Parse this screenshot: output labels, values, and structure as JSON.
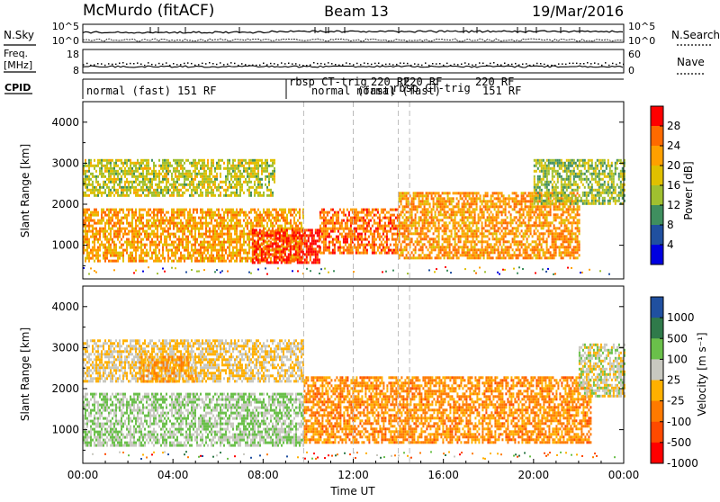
{
  "header": {
    "station": "McMurdo (fitACF)",
    "beam": "Beam 13",
    "date": "19/Mar/2016"
  },
  "noise_panel": {
    "left_label": "N.Sky",
    "right_label": "N.Search",
    "left_ticks": [
      "10^5",
      "10^0"
    ],
    "right_ticks": [
      "10^5",
      "10^0"
    ]
  },
  "freq_panel": {
    "left_label_1": "Freq.",
    "left_label_2": "[MHz]",
    "right_label": "Nave",
    "left_ticks": [
      "18",
      "8"
    ],
    "right_ticks": [
      "60",
      "0"
    ]
  },
  "cpid_panel": {
    "label": "CPID",
    "programs": [
      {
        "label": "normal (fast) 151 RF"
      },
      {
        "label": "rbsp CT-trig"
      },
      {
        "label": "normal (fast)"
      },
      {
        "label": "220 RF"
      },
      {
        "label": "220 RF"
      },
      {
        "label": "rbsp CT-trig"
      },
      {
        "label": "normal (fast)"
      },
      {
        "label": "220 RF"
      },
      {
        "label": "151 RF"
      }
    ]
  },
  "x_axis": {
    "title": "Time UT",
    "tick_labels": [
      "00:00",
      "04:00",
      "08:00",
      "12:00",
      "16:00",
      "20:00",
      "00:00"
    ]
  },
  "power_panel": {
    "ylabel": "Slant Range [km]",
    "y_ticks": [
      "4000",
      "3000",
      "2000",
      "1000"
    ],
    "colorbar_label": "Power [dB]",
    "colorbar_ticks": [
      "28",
      "24",
      "20",
      "16",
      "12",
      "8",
      "4"
    ]
  },
  "velocity_panel": {
    "ylabel": "Slant Range [km]",
    "y_ticks": [
      "4000",
      "3000",
      "2000",
      "1000"
    ],
    "colorbar_label": "Velocity [m s⁻¹]",
    "colorbar_ticks": [
      "1000",
      "500",
      "100",
      "25",
      "-25",
      "-100",
      "-500",
      "-1000"
    ]
  },
  "colors": {
    "power_scale": [
      "#ff0000",
      "#ff6a00",
      "#ffa000",
      "#e0c000",
      "#a0c030",
      "#3f8f5f",
      "#2050a0",
      "#0000e0"
    ],
    "velocity_scale": [
      "#2050a0",
      "#2f7a4a",
      "#6ac04a",
      "#c8c8c0",
      "#ffb000",
      "#ff7a00",
      "#ff4a00",
      "#ff0000"
    ]
  },
  "chart_data": [
    {
      "type": "heatmap",
      "title": "Power",
      "xlabel": "Time UT",
      "ylabel": "Slant Range [km]",
      "x_unit": "hours UT",
      "xlim": [
        0,
        24
      ],
      "ylim": [
        180,
        4500
      ],
      "colorbar": {
        "label": "Power [dB]",
        "range": [
          0,
          32
        ]
      },
      "regions": [
        {
          "t": [
            0.0,
            9.8
          ],
          "r": [
            600,
            1900
          ],
          "value": 22
        },
        {
          "t": [
            0.0,
            8.5
          ],
          "r": [
            2200,
            3100
          ],
          "value": 16
        },
        {
          "t": [
            7.5,
            10.5
          ],
          "r": [
            600,
            1400
          ],
          "value": 29
        },
        {
          "t": [
            10.5,
            14.0
          ],
          "r": [
            800,
            1900
          ],
          "value": 25
        },
        {
          "t": [
            14.0,
            22.0
          ],
          "r": [
            700,
            2300
          ],
          "value": 23
        },
        {
          "t": [
            20.0,
            24.0
          ],
          "r": [
            2000,
            3100
          ],
          "value": 14
        }
      ]
    },
    {
      "type": "heatmap",
      "title": "Velocity",
      "xlabel": "Time UT",
      "ylabel": "Slant Range [km]",
      "x_unit": "hours UT",
      "xlim": [
        0,
        24
      ],
      "ylim": [
        180,
        4500
      ],
      "colorbar": {
        "label": "Velocity [m s⁻¹]",
        "range": [
          -1000,
          1000
        ]
      },
      "regions": [
        {
          "t": [
            0.0,
            9.8
          ],
          "r": [
            600,
            1900
          ],
          "value": 250
        },
        {
          "t": [
            0.0,
            9.8
          ],
          "r": [
            2200,
            3200
          ],
          "value": 0
        },
        {
          "t": [
            2.5,
            5.0
          ],
          "r": [
            2200,
            2800
          ],
          "value": -200
        },
        {
          "t": [
            9.8,
            22.5
          ],
          "r": [
            700,
            2300
          ],
          "value": -300
        },
        {
          "t": [
            22.0,
            24.0
          ],
          "r": [
            1800,
            3100
          ],
          "value": 100
        }
      ]
    }
  ]
}
